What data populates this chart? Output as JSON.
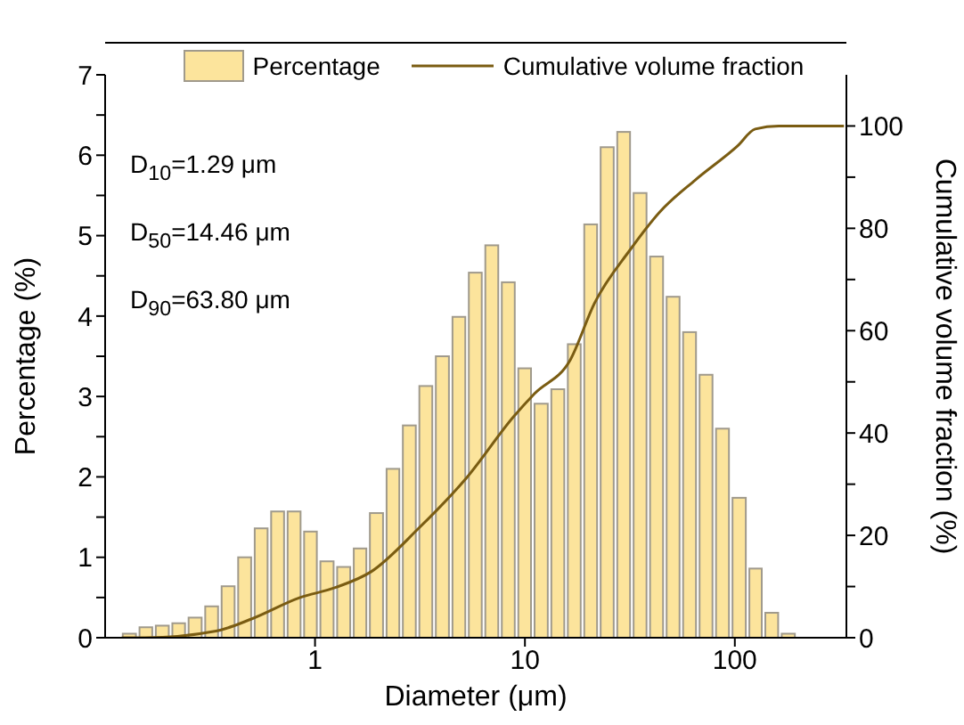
{
  "chart_data": {
    "type": "histogram",
    "xlabel": "Diameter (μm)",
    "ylabel": "Percentage (%)",
    "y2label": "Cumulative volume fraction (%)",
    "log": "x",
    "xlim": [
      0.1,
      340
    ],
    "xticks": [
      1,
      10,
      100
    ],
    "ylim": [
      0,
      7
    ],
    "yticks": [
      0,
      {
        "value": 0.5,
        "label": null
      },
      1,
      {
        "value": 1.5,
        "label": null
      },
      2,
      {
        "value": 2.5,
        "label": null
      },
      3,
      {
        "value": 3.5,
        "label": null
      },
      4,
      {
        "value": 4.5,
        "label": null
      },
      5,
      {
        "value": 5.5,
        "label": null
      },
      6,
      {
        "value": 6.5,
        "label": null
      },
      7
    ],
    "y2lim": [
      0,
      110
    ],
    "y2ticks": [
      0,
      {
        "value": 10,
        "label": null
      },
      20,
      {
        "value": 30,
        "label": null
      },
      40,
      {
        "value": 50,
        "label": null
      },
      60,
      {
        "value": 70,
        "label": null
      },
      80,
      {
        "value": 90,
        "label": null
      },
      100
    ],
    "legend": "top",
    "annotations": [
      "D$_{10}$=1.29 μm",
      "D$_{50}$=14.46 μm",
      "D$_{90}$=63.80 μm"
    ],
    "bins": [
      0.119,
      0.143,
      0.171,
      0.205,
      0.245,
      0.294,
      0.352,
      0.422,
      0.506,
      0.606,
      0.726,
      0.87,
      1.04,
      1.25,
      1.5,
      1.79,
      2.15,
      2.57,
      3.08,
      3.69,
      4.43,
      5.3,
      6.35,
      7.61,
      9.12,
      10.9,
      13.1,
      15.7,
      18.8,
      22.5,
      27.0,
      32.3,
      38.7,
      46.4,
      55.6,
      66.6,
      79.8,
      95.6,
      115,
      137,
      164,
      197
    ],
    "series": [
      {
        "name": "Percentage",
        "color": "#fce49c",
        "values": [
          0.05,
          0.13,
          0.15,
          0.18,
          0.25,
          0.39,
          0.64,
          1.0,
          1.36,
          1.57,
          1.57,
          1.32,
          0.95,
          0.88,
          1.11,
          1.55,
          2.1,
          2.64,
          3.13,
          3.5,
          3.99,
          4.54,
          4.88,
          4.42,
          3.35,
          2.91,
          3.09,
          3.65,
          5.14,
          6.1,
          6.29,
          5.53,
          4.74,
          4.24,
          3.8,
          3.27,
          2.6,
          1.74,
          0.86,
          0.31,
          0.05
        ]
      },
      {
        "name": "Cumulative volume fraction",
        "type": "line",
        "axis": "y2",
        "color": "#7a5c12",
        "x": [
          0.12,
          0.155,
          0.338,
          0.501,
          0.843,
          1.25,
          1.85,
          3.12,
          5.26,
          8.87,
          11.1,
          16.5,
          21.4,
          31.7,
          43.9,
          65,
          103,
          125,
          162,
          331
        ],
        "values": [
          0,
          0,
          1.3,
          3.7,
          7.8,
          9.8,
          12.9,
          21.4,
          31.2,
          43.3,
          47.7,
          54.4,
          65.3,
          75.8,
          83.2,
          89.5,
          96.1,
          99.4,
          100,
          100
        ]
      }
    ]
  }
}
